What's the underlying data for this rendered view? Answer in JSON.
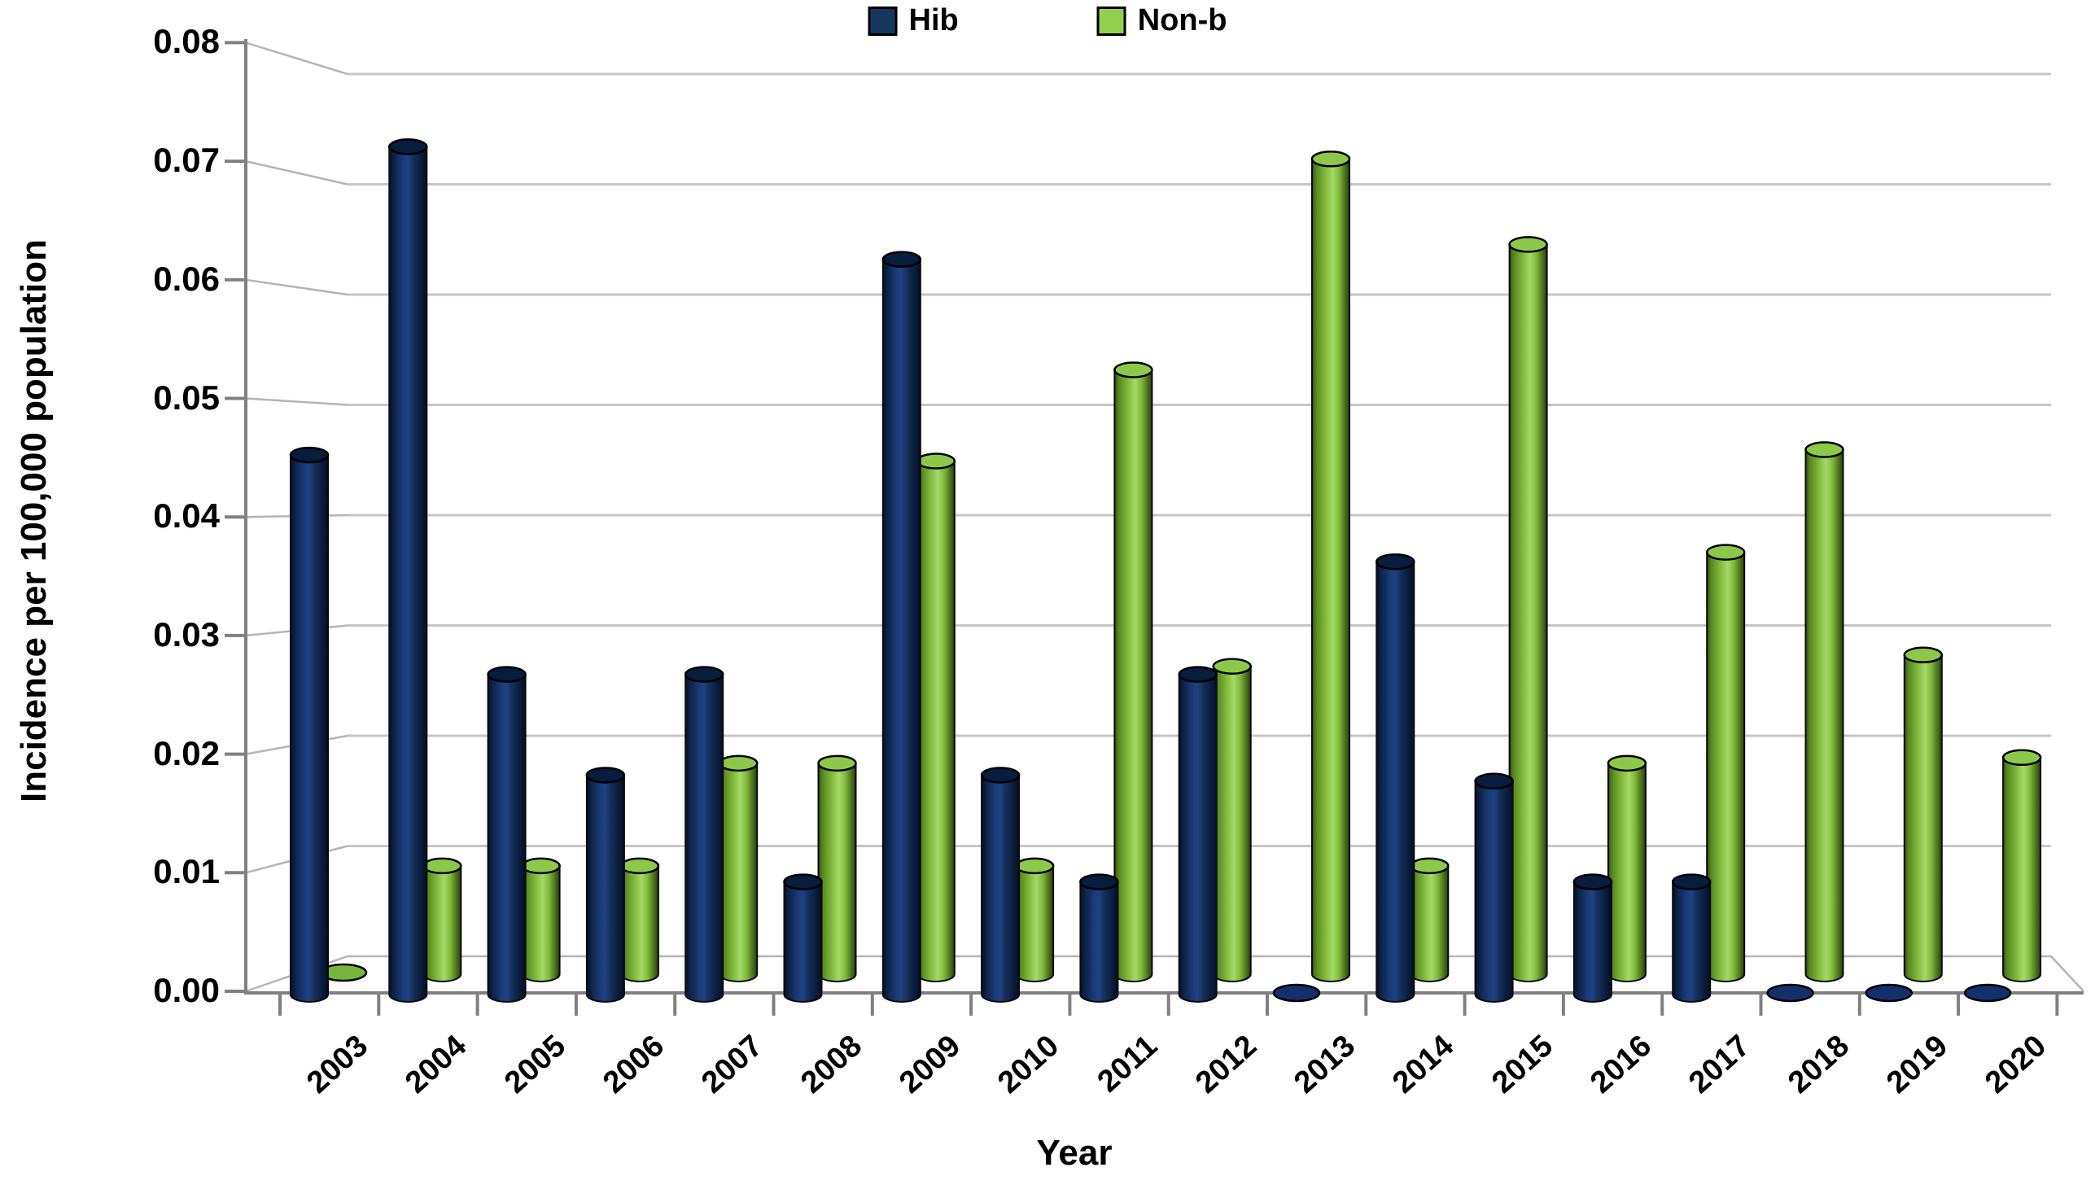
{
  "legend": {
    "items": [
      {
        "label": "Hib",
        "color": "#17375e"
      },
      {
        "label": "Non-b",
        "color": "#92d050"
      }
    ]
  },
  "y_axis": {
    "title": "Incidence per 100,000 population",
    "ticks": [
      "0.00",
      "0.01",
      "0.02",
      "0.03",
      "0.04",
      "0.05",
      "0.06",
      "0.07",
      "0.08"
    ]
  },
  "x_axis": {
    "title": "Year"
  },
  "chart_data": {
    "type": "bar",
    "subtype": "3d-cylinder-clustered",
    "title": "",
    "xlabel": "Year",
    "ylabel": "Incidence per 100,000 population",
    "ylim": [
      0,
      0.08
    ],
    "ytick_step": 0.01,
    "grid": true,
    "legend_position": "top-center",
    "background": "#ffffff",
    "categories": [
      "2003",
      "2004",
      "2005",
      "2006",
      "2007",
      "2008",
      "2009",
      "2010",
      "2011",
      "2012",
      "2013",
      "2014",
      "2015",
      "2016",
      "2017",
      "2018",
      "2019",
      "2020"
    ],
    "series": [
      {
        "name": "Hib",
        "color": "#17375e",
        "values": [
          0.0455,
          0.0715,
          0.027,
          0.0185,
          0.027,
          0.0095,
          0.062,
          0.0185,
          0.0095,
          0.027,
          0.001,
          0.0365,
          0.018,
          0.0095,
          0.0095,
          0.001,
          0.001,
          0.001
        ]
      },
      {
        "name": "Non-b",
        "color": "#92d050",
        "values": [
          0.001,
          0.0095,
          0.0095,
          0.0095,
          0.0185,
          0.0185,
          0.045,
          0.0095,
          0.053,
          0.027,
          0.0715,
          0.0095,
          0.064,
          0.0185,
          0.037,
          0.046,
          0.028,
          0.019
        ]
      }
    ]
  }
}
